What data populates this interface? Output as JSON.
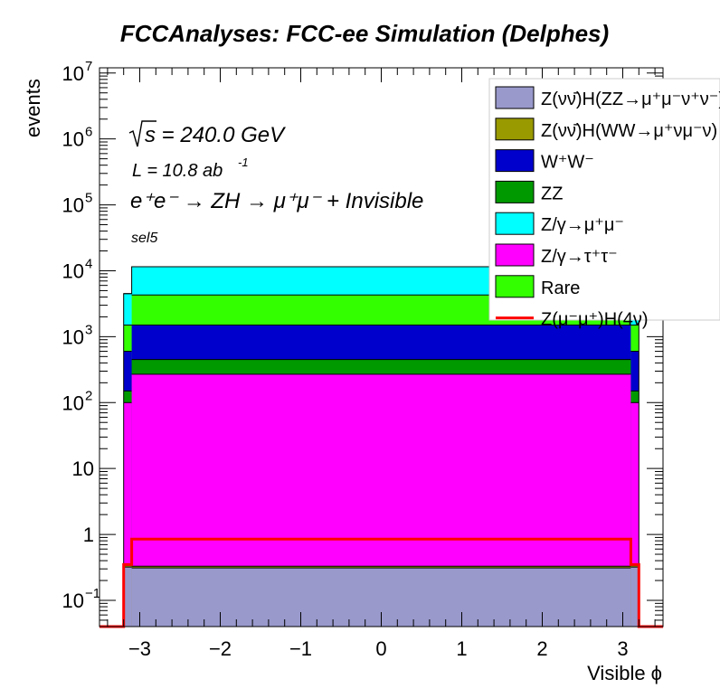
{
  "chart_data": {
    "type": "stacked-histogram",
    "title": "FCCAnalyses: FCC-ee Simulation (Delphes)",
    "xlabel": "Visible ϕ",
    "ylabel": "events",
    "y_scale": "log",
    "xlim": [
      -3.5,
      3.5
    ],
    "ylim": [
      0.04,
      12000000
    ],
    "x_ticks": [
      -3,
      -2,
      -1,
      0,
      1,
      2,
      3
    ],
    "x_tick_labels": [
      "−3",
      "−2",
      "−1",
      "0",
      "1",
      "2",
      "3"
    ],
    "y_tick_labels": [
      {
        "value": 10000000,
        "base": "10",
        "exp": "7"
      },
      {
        "value": 1000000,
        "base": "10",
        "exp": "6"
      },
      {
        "value": 100000,
        "base": "10",
        "exp": "5"
      },
      {
        "value": 10000,
        "base": "10",
        "exp": "4"
      },
      {
        "value": 1000,
        "base": "10",
        "exp": "3"
      },
      {
        "value": 100,
        "base": "10",
        "exp": "2"
      },
      {
        "value": 10,
        "base": "10",
        "exp": ""
      },
      {
        "value": 1,
        "base": "1",
        "exp": ""
      },
      {
        "value": 0.1,
        "base": "10",
        "exp": "−1"
      }
    ],
    "bin_edges": [
      -3.2,
      -3.1,
      3.1,
      3.2
    ],
    "stacked_totals": [
      {
        "name": "Z(νν̄)H(ZZ→μ⁺μ⁻ν⁺ν⁻)",
        "color": "#9999cc",
        "values": [
          0.32,
          0.31,
          0.32
        ]
      },
      {
        "name": "Z(νν̄)H(WW→μ⁺νμ⁻ν)",
        "color": "#999900",
        "values": [
          0.34,
          0.33,
          0.34
        ]
      },
      {
        "name": "W⁺W⁻",
        "color": "#0000cc",
        "values": [
          600,
          1500,
          600
        ]
      },
      {
        "name": "ZZ",
        "color": "#009900",
        "values": [
          150,
          450,
          150
        ]
      },
      {
        "name": "Z/γ→μ⁺μ⁻",
        "color": "#00ffff",
        "values": [
          4500,
          11500,
          4500
        ]
      },
      {
        "name": "Z/γ→τ⁺τ⁻",
        "color": "#ff00ff",
        "values": [
          100,
          270,
          100
        ]
      },
      {
        "name": "Rare",
        "color": "#33ff00",
        "values": [
          1500,
          4300,
          1500
        ]
      }
    ],
    "signal": {
      "name": "Z(μ⁻μ⁺)H(4ν)",
      "color": "#ff0000",
      "values": [
        0.35,
        0.85,
        0.35
      ]
    },
    "legend_position": "top-right",
    "annotations": {
      "sqrt_s": "s = 240.0 GeV",
      "lumi_main": "L = 10.8 ab",
      "lumi_exp": "-1",
      "process": "e⁺e⁻ → ZH → μ⁺μ⁻ + Invisible",
      "selection": "sel5"
    }
  }
}
